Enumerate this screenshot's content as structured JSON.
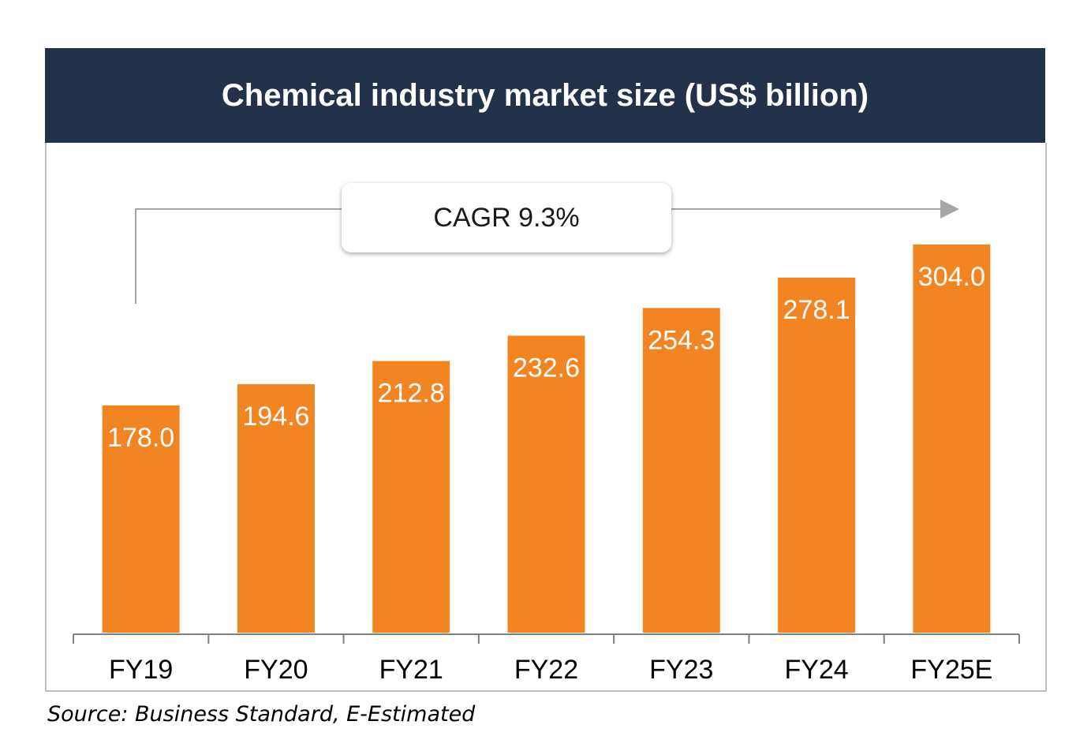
{
  "chart_data": {
    "type": "bar",
    "title": "Chemical industry market size (US$ billion)",
    "categories": [
      "FY19",
      "FY20",
      "FY21",
      "FY22",
      "FY23",
      "FY24",
      "FY25E"
    ],
    "values": [
      178.0,
      194.6,
      212.8,
      232.6,
      254.3,
      278.1,
      304.0
    ],
    "value_labels": [
      "178.0",
      "194.6",
      "212.8",
      "232.6",
      "254.3",
      "278.1",
      "304.0"
    ],
    "annotation": "CAGR 9.3%",
    "bar_color": "#f28521",
    "grid": false,
    "legend": "none",
    "ylim": [
      0,
      304.0
    ]
  },
  "source": "Source: Business Standard, E-Estimated",
  "colors": {
    "header_bg": "#21324a",
    "bar": "#f28521",
    "axis": "#808080"
  }
}
